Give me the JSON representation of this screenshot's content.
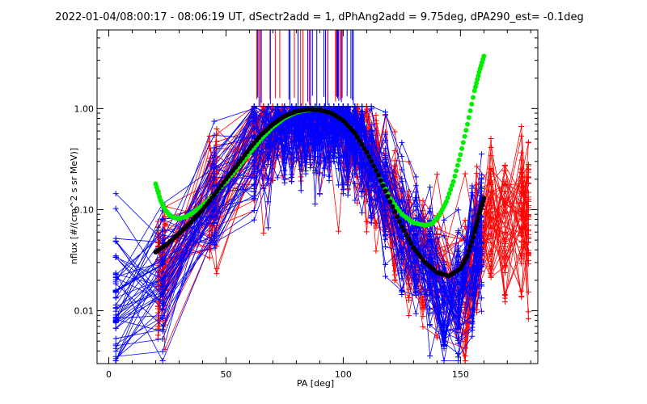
{
  "chart_data": {
    "type": "scatter",
    "title": "2022-01-04/08:00:17 - 08:06:19 UT, dSectr2add = 1, dPhAng2add = 9.75deg, dPA290_est=  -0.1deg",
    "xlabel": "PA [deg]",
    "ylabel": "nflux [#/(cm^2 s sr MeV)]",
    "xlim": [
      -5,
      183
    ],
    "ylim": [
      0.003,
      6.0
    ],
    "yscale": "log",
    "xticks": [
      0,
      50,
      100,
      150
    ],
    "xtick_labels": [
      "0",
      "50",
      "100",
      "150"
    ],
    "yticks": [
      0.01,
      0.1,
      1.0
    ],
    "ytick_labels": [
      "0.01",
      "0.10",
      "1.00"
    ],
    "grid": false,
    "legend": "none",
    "colors": {
      "blue_series": "#0000ff",
      "red_series": "#ff0000",
      "green_fit": "#00ee00",
      "black_fit": "#000000"
    },
    "measurement_pa_blue": [
      3,
      23,
      45,
      62,
      68,
      72,
      75,
      78,
      80,
      82,
      84,
      86,
      88,
      90,
      92,
      94,
      96,
      98,
      100,
      102,
      105,
      108,
      112,
      118,
      125,
      131,
      137,
      143,
      149,
      155,
      159
    ],
    "measurement_pa_red": [
      21,
      24,
      43,
      46,
      62,
      66,
      70,
      74,
      78,
      82,
      86,
      90,
      94,
      98,
      102,
      106,
      110,
      114,
      118,
      122,
      128,
      134,
      140,
      152,
      157,
      163,
      169,
      176,
      179
    ],
    "series": [
      {
        "color": "green",
        "x": [
          20,
          22,
          24,
          26,
          28,
          30,
          33,
          36,
          40,
          45,
          50,
          55,
          60,
          65,
          70,
          75,
          80,
          85,
          88,
          90,
          95,
          100,
          105,
          110,
          115,
          120,
          125,
          130,
          135,
          138,
          141,
          144,
          147,
          150,
          153,
          156,
          158,
          160
        ],
        "y": [
          0.18,
          0.125,
          0.1,
          0.088,
          0.083,
          0.082,
          0.085,
          0.094,
          0.11,
          0.14,
          0.19,
          0.26,
          0.36,
          0.5,
          0.66,
          0.81,
          0.92,
          0.97,
          0.98,
          0.97,
          0.9,
          0.76,
          0.57,
          0.37,
          0.22,
          0.13,
          0.09,
          0.074,
          0.07,
          0.073,
          0.088,
          0.12,
          0.19,
          0.35,
          0.7,
          1.5,
          2.3,
          3.3
        ]
      },
      {
        "color": "black",
        "x": [
          20,
          25,
          30,
          35,
          40,
          45,
          50,
          55,
          60,
          65,
          70,
          75,
          80,
          85,
          90,
          95,
          100,
          105,
          110,
          115,
          120,
          125,
          130,
          135,
          140,
          145,
          150,
          153,
          156,
          158,
          160
        ],
        "y": [
          0.038,
          0.046,
          0.058,
          0.075,
          0.1,
          0.14,
          0.2,
          0.28,
          0.4,
          0.55,
          0.7,
          0.84,
          0.94,
          0.98,
          0.97,
          0.9,
          0.76,
          0.57,
          0.37,
          0.22,
          0.12,
          0.068,
          0.042,
          0.03,
          0.024,
          0.022,
          0.026,
          0.035,
          0.06,
          0.09,
          0.13
        ]
      }
    ]
  }
}
